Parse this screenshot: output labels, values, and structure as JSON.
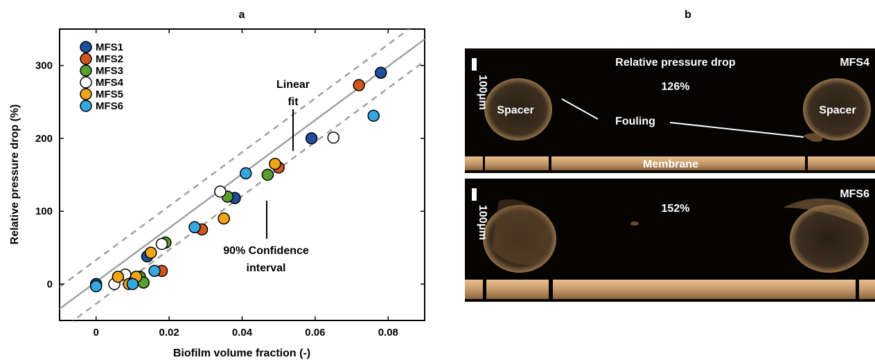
{
  "chart_data": {
    "type": "scatter",
    "panel_label": "a",
    "xlabel": "Biofilm volume fraction (-)",
    "ylabel": "Relative pressure drop (%)",
    "xlim": [
      -0.01,
      0.09
    ],
    "ylim": [
      -50,
      350
    ],
    "xticks": [
      0,
      0.02,
      0.04,
      0.06,
      0.08
    ],
    "xtick_labels": [
      "0",
      "0.02",
      "0.04",
      "0.06",
      "0.08"
    ],
    "yticks": [
      0,
      100,
      200,
      300
    ],
    "ytick_labels": [
      "0",
      "100",
      "200",
      "300"
    ],
    "grid": false,
    "legend_position": "top-left",
    "fit": {
      "label_lines": [
        "Linear",
        "fit"
      ],
      "slope": 3700,
      "intercept": 3,
      "ci_offset": 30
    },
    "ci_label_lines": [
      "90% Confidence",
      "interval"
    ],
    "series": [
      {
        "name": "MFS1",
        "color": "#1f4e9c",
        "x": [
          0,
          0.014,
          0.038,
          0.059,
          0.078
        ],
        "y": [
          0,
          38,
          118,
          200,
          290
        ]
      },
      {
        "name": "MFS2",
        "color": "#d0561d",
        "x": [
          0.018,
          0.029,
          0.05,
          0.072
        ],
        "y": [
          18,
          75,
          160,
          273
        ]
      },
      {
        "name": "MFS3",
        "color": "#5a9e32",
        "x": [
          0.012,
          0.013,
          0.019,
          0.036,
          0.047
        ],
        "y": [
          10,
          2,
          57,
          120,
          150
        ]
      },
      {
        "name": "MFS4",
        "color": "#ffffff",
        "x": [
          0.005,
          0.008,
          0.018,
          0.034,
          0.065
        ],
        "y": [
          0,
          13,
          55,
          127,
          201
        ]
      },
      {
        "name": "MFS5",
        "color": "#f2a516",
        "x": [
          0.006,
          0.009,
          0.011,
          0.015,
          0.035,
          0.049
        ],
        "y": [
          10,
          0,
          10,
          43,
          90,
          165
        ]
      },
      {
        "name": "MFS6",
        "color": "#35a8e0",
        "x": [
          0,
          0.01,
          0.016,
          0.027,
          0.041,
          0.076
        ],
        "y": [
          -3,
          0,
          18,
          78,
          152,
          231
        ]
      }
    ]
  },
  "panel_b": {
    "label": "b",
    "top_image": {
      "title": "Relative pressure drop",
      "value": "126%",
      "sample": "MFS4",
      "scale_bar": "100μm",
      "spacer_left": "Spacer",
      "spacer_right": "Spacer",
      "fouling": "Fouling",
      "membrane": "Membrane"
    },
    "bottom_image": {
      "value": "152%",
      "sample": "MFS6",
      "scale_bar": "100μm"
    },
    "colors": {
      "background": "#050403",
      "membrane": "#c69a6a",
      "spacer": "#5a4632",
      "spacer_edge": "#b08a5a"
    }
  }
}
